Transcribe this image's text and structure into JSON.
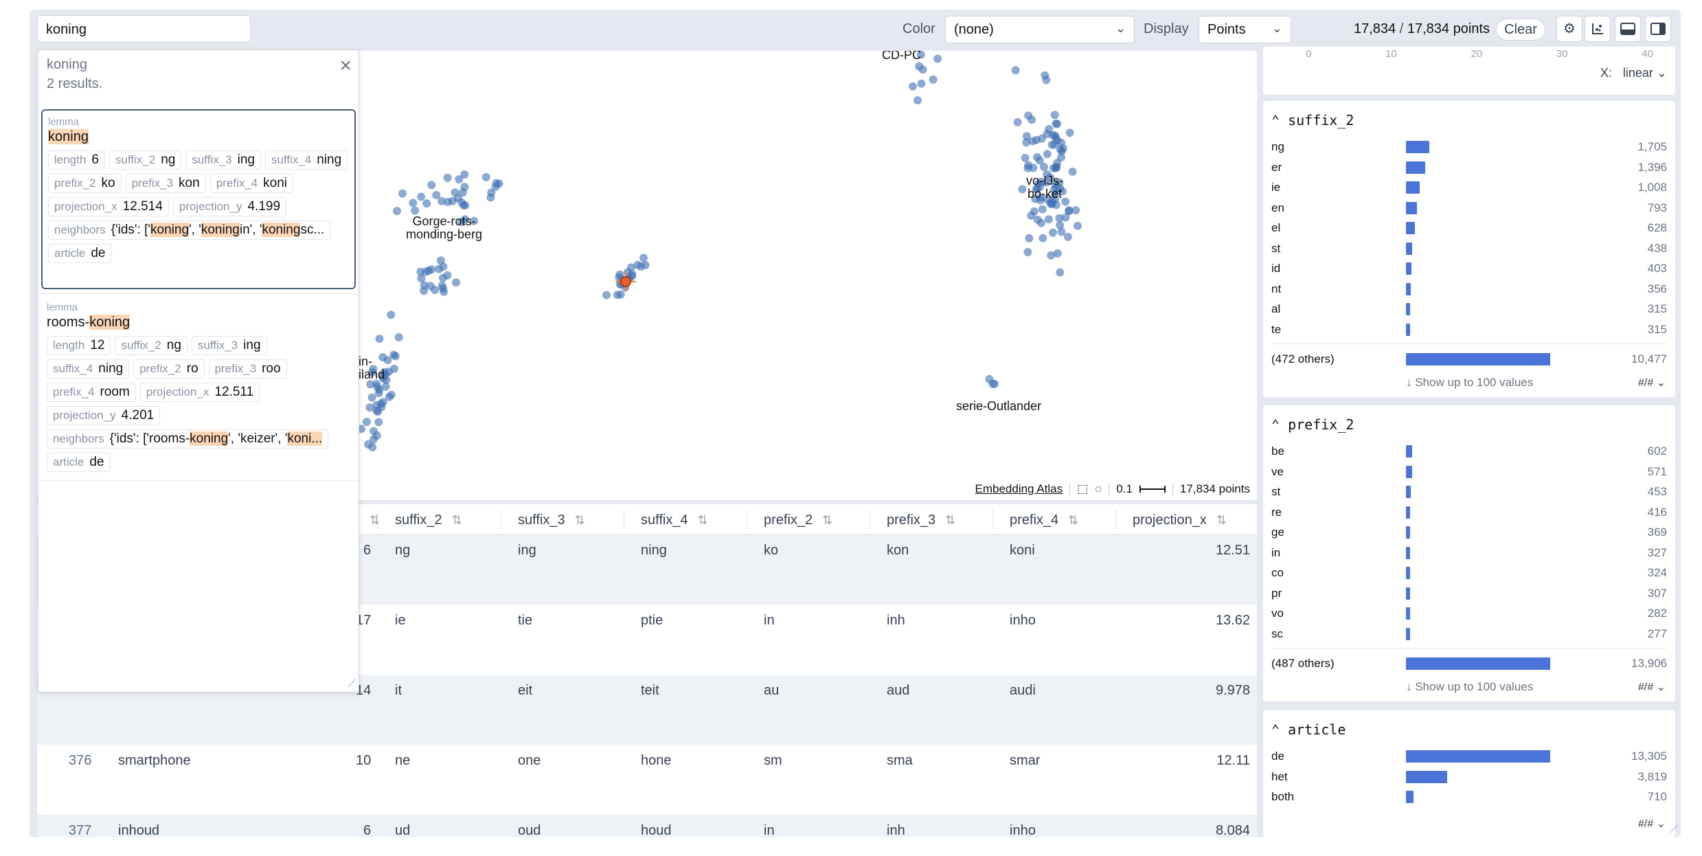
{
  "toolbar": {
    "search_value": "koning",
    "color_label": "Color",
    "color_value": "(none)",
    "display_label": "Display",
    "display_value": "Points",
    "count_selected": "17,834",
    "count_sep": " / ",
    "count_total": "17,834 points",
    "clear_label": "Clear",
    "icons": [
      "gear-icon",
      "scatter-icon",
      "table-layout-icon",
      "sidebar-layout-icon"
    ]
  },
  "map": {
    "labels": [
      {
        "text": "CD-PC"
      },
      {
        "text": "Gorge-rots-\nmonding-berg"
      },
      {
        "text": "vo-IJs-\nbo-ket"
      },
      {
        "text": "ein-\neiland"
      },
      {
        "text": "serie-Outlander"
      }
    ],
    "footer": {
      "brand": "Embedding Atlas",
      "scale": "0.1",
      "points": "17,834 points"
    }
  },
  "search_results": {
    "query": "koning",
    "count_text": "2 results.",
    "results": [
      {
        "field_label": "lemma",
        "lemma_pre": "",
        "lemma_hl": "koning",
        "lemma_post": "",
        "length": "6",
        "suffix_2": "ng",
        "suffix_3": "ing",
        "suffix_4": "ning",
        "prefix_2": "ko",
        "prefix_3": "kon",
        "prefix_4": "koni",
        "projection_x": "12.514",
        "projection_y": "4.199",
        "neighbors_a": "{'ids': ['",
        "neighbors_b": "koning",
        "neighbors_c": "', '",
        "neighbors_d": "koning",
        "neighbors_e": "in', '",
        "neighbors_f": "koning",
        "neighbors_g": "sc...",
        "article": "de"
      },
      {
        "field_label": "lemma",
        "lemma_pre": "rooms-",
        "lemma_hl": "koning",
        "lemma_post": "",
        "length": "12",
        "suffix_2": "ng",
        "suffix_3": "ing",
        "suffix_4": "ning",
        "prefix_2": "ro",
        "prefix_3": "roo",
        "prefix_4": "room",
        "projection_x": "12.511",
        "projection_y": "4.201",
        "neighbors_a": "{'ids': ['rooms-",
        "neighbors_b": "koning",
        "neighbors_c": "', 'keizer', '",
        "neighbors_d": "koni...",
        "article": "de"
      }
    ],
    "tag_keys": {
      "length": "length",
      "suffix_2": "suffix_2",
      "suffix_3": "suffix_3",
      "suffix_4": "suffix_4",
      "prefix_2": "prefix_2",
      "prefix_3": "prefix_3",
      "prefix_4": "prefix_4",
      "projection_x": "projection_x",
      "projection_y": "projection_y",
      "neighbors": "neighbors",
      "article": "article"
    }
  },
  "table": {
    "columns": [
      "suffix_2",
      "suffix_3",
      "suffix_4",
      "prefix_2",
      "prefix_3",
      "prefix_4",
      "projection_x"
    ],
    "rows": [
      {
        "id": "",
        "lemma": "",
        "length": "6",
        "suffix_2": "ng",
        "suffix_3": "ing",
        "suffix_4": "ning",
        "prefix_2": "ko",
        "prefix_3": "kon",
        "prefix_4": "koni",
        "projection_x": "12.51"
      },
      {
        "id": "",
        "lemma": "",
        "length": "17",
        "suffix_2": "ie",
        "suffix_3": "tie",
        "suffix_4": "ptie",
        "prefix_2": "in",
        "prefix_3": "inh",
        "prefix_4": "inho",
        "projection_x": "13.62"
      },
      {
        "id": "",
        "lemma": "",
        "length": "14",
        "suffix_2": "it",
        "suffix_3": "eit",
        "suffix_4": "teit",
        "prefix_2": "au",
        "prefix_3": "aud",
        "prefix_4": "audi",
        "projection_x": "9.978"
      },
      {
        "id": "376",
        "lemma": "smartphone",
        "length": "10",
        "suffix_2": "ne",
        "suffix_3": "one",
        "suffix_4": "hone",
        "prefix_2": "sm",
        "prefix_3": "sma",
        "prefix_4": "smar",
        "projection_x": "12.11"
      },
      {
        "id": "377",
        "lemma": "inhoud",
        "length": "6",
        "suffix_2": "ud",
        "suffix_3": "oud",
        "suffix_4": "houd",
        "prefix_2": "in",
        "prefix_3": "inh",
        "prefix_4": "inho",
        "projection_x": "8.084"
      }
    ]
  },
  "panel": {
    "top_axis": [
      "0",
      "10",
      "20",
      "30",
      "40"
    ],
    "x_scale_label": "X:",
    "x_scale_value": "linear",
    "show_more": "↓ Show up to 100 values",
    "format": "#/#",
    "accent": "#4a74d9",
    "cards": [
      {
        "title": "suffix_2",
        "max": 10477,
        "items": [
          {
            "label": "ng",
            "value": 1705,
            "text": "1,705"
          },
          {
            "label": "er",
            "value": 1396,
            "text": "1,396"
          },
          {
            "label": "ie",
            "value": 1008,
            "text": "1,008"
          },
          {
            "label": "en",
            "value": 793,
            "text": "793"
          },
          {
            "label": "el",
            "value": 628,
            "text": "628"
          },
          {
            "label": "st",
            "value": 438,
            "text": "438"
          },
          {
            "label": "id",
            "value": 403,
            "text": "403"
          },
          {
            "label": "nt",
            "value": 356,
            "text": "356"
          },
          {
            "label": "al",
            "value": 315,
            "text": "315"
          },
          {
            "label": "te",
            "value": 315,
            "text": "315"
          }
        ],
        "others": {
          "label": "(472 others)",
          "value": 10477,
          "text": "10,477"
        }
      },
      {
        "title": "prefix_2",
        "max": 13906,
        "items": [
          {
            "label": "be",
            "value": 602,
            "text": "602"
          },
          {
            "label": "ve",
            "value": 571,
            "text": "571"
          },
          {
            "label": "st",
            "value": 453,
            "text": "453"
          },
          {
            "label": "re",
            "value": 416,
            "text": "416"
          },
          {
            "label": "ge",
            "value": 369,
            "text": "369"
          },
          {
            "label": "in",
            "value": 327,
            "text": "327"
          },
          {
            "label": "co",
            "value": 324,
            "text": "324"
          },
          {
            "label": "pr",
            "value": 307,
            "text": "307"
          },
          {
            "label": "vo",
            "value": 282,
            "text": "282"
          },
          {
            "label": "sc",
            "value": 277,
            "text": "277"
          }
        ],
        "others": {
          "label": "(487 others)",
          "value": 13906,
          "text": "13,906"
        }
      },
      {
        "title": "article",
        "max": 13305,
        "items": [
          {
            "label": "de",
            "value": 13305,
            "text": "13,305"
          },
          {
            "label": "het",
            "value": 3819,
            "text": "3,819"
          },
          {
            "label": "both",
            "value": 710,
            "text": "710"
          }
        ]
      }
    ]
  }
}
